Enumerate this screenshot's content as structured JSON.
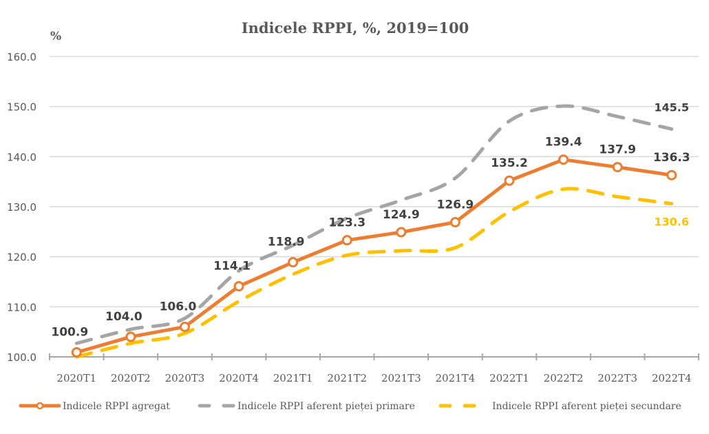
{
  "chart_data": {
    "type": "line",
    "title": "Indicele RPPI, %, 2019=100",
    "ylabel": "%",
    "xlabel": "",
    "ylim": [
      100,
      160
    ],
    "yticks": [
      100,
      110,
      120,
      130,
      140,
      150,
      160
    ],
    "ytick_labels": [
      "100.0",
      "110.0",
      "120.0",
      "130.0",
      "140.0",
      "150.0",
      "160.0"
    ],
    "grid": true,
    "legend_position": "bottom",
    "categories": [
      "2020T1",
      "2020T2",
      "2020T3",
      "2020T4",
      "2021T1",
      "2021T2",
      "2021T3",
      "2021T4",
      "2022T1",
      "2022T2",
      "2022T3",
      "2022T4"
    ],
    "series": [
      {
        "name": "Indicele RPPI aferent pieței primare",
        "color": "#A5A5A5",
        "style": "dashed",
        "values": [
          102.7,
          105.5,
          107.7,
          117.2,
          122.3,
          127.7,
          131.3,
          135.7,
          147.1,
          150.1,
          148.0,
          145.5
        ],
        "labels": {
          "11": "145.5"
        },
        "label_color": "#404040"
      },
      {
        "name": "Indicele RPPI aferent pieței secundare",
        "color": "#FFC000",
        "style": "dashed",
        "values": [
          100.0,
          102.7,
          104.7,
          111.1,
          116.5,
          120.3,
          121.2,
          121.8,
          129.0,
          133.5,
          132.0,
          130.6
        ],
        "labels": {
          "11": "130.6"
        },
        "label_color": "#FFC000"
      },
      {
        "name": "Indicele RPPI agregat",
        "color": "#ED7D31",
        "style": "solid-markers",
        "values": [
          100.9,
          104.0,
          106.0,
          114.1,
          118.9,
          123.3,
          124.9,
          126.9,
          135.2,
          139.4,
          137.9,
          136.3
        ],
        "labels": {
          "0": "100.9",
          "1": "104.0",
          "2": "106.0",
          "3": "114.1",
          "4": "118.9",
          "5": "123.3",
          "6": "124.9",
          "7": "126.9",
          "8": "135.2",
          "9": "139.4",
          "10": "137.9",
          "11": "136.3"
        },
        "label_color": "#404040"
      }
    ],
    "legend": [
      {
        "label": "Indicele RPPI agregat",
        "series": 2
      },
      {
        "label": "Indicele RPPI aferent pieței primare",
        "series": 0
      },
      {
        "label": "Indicele RPPI aferent pieței secundare",
        "series": 1
      }
    ]
  }
}
